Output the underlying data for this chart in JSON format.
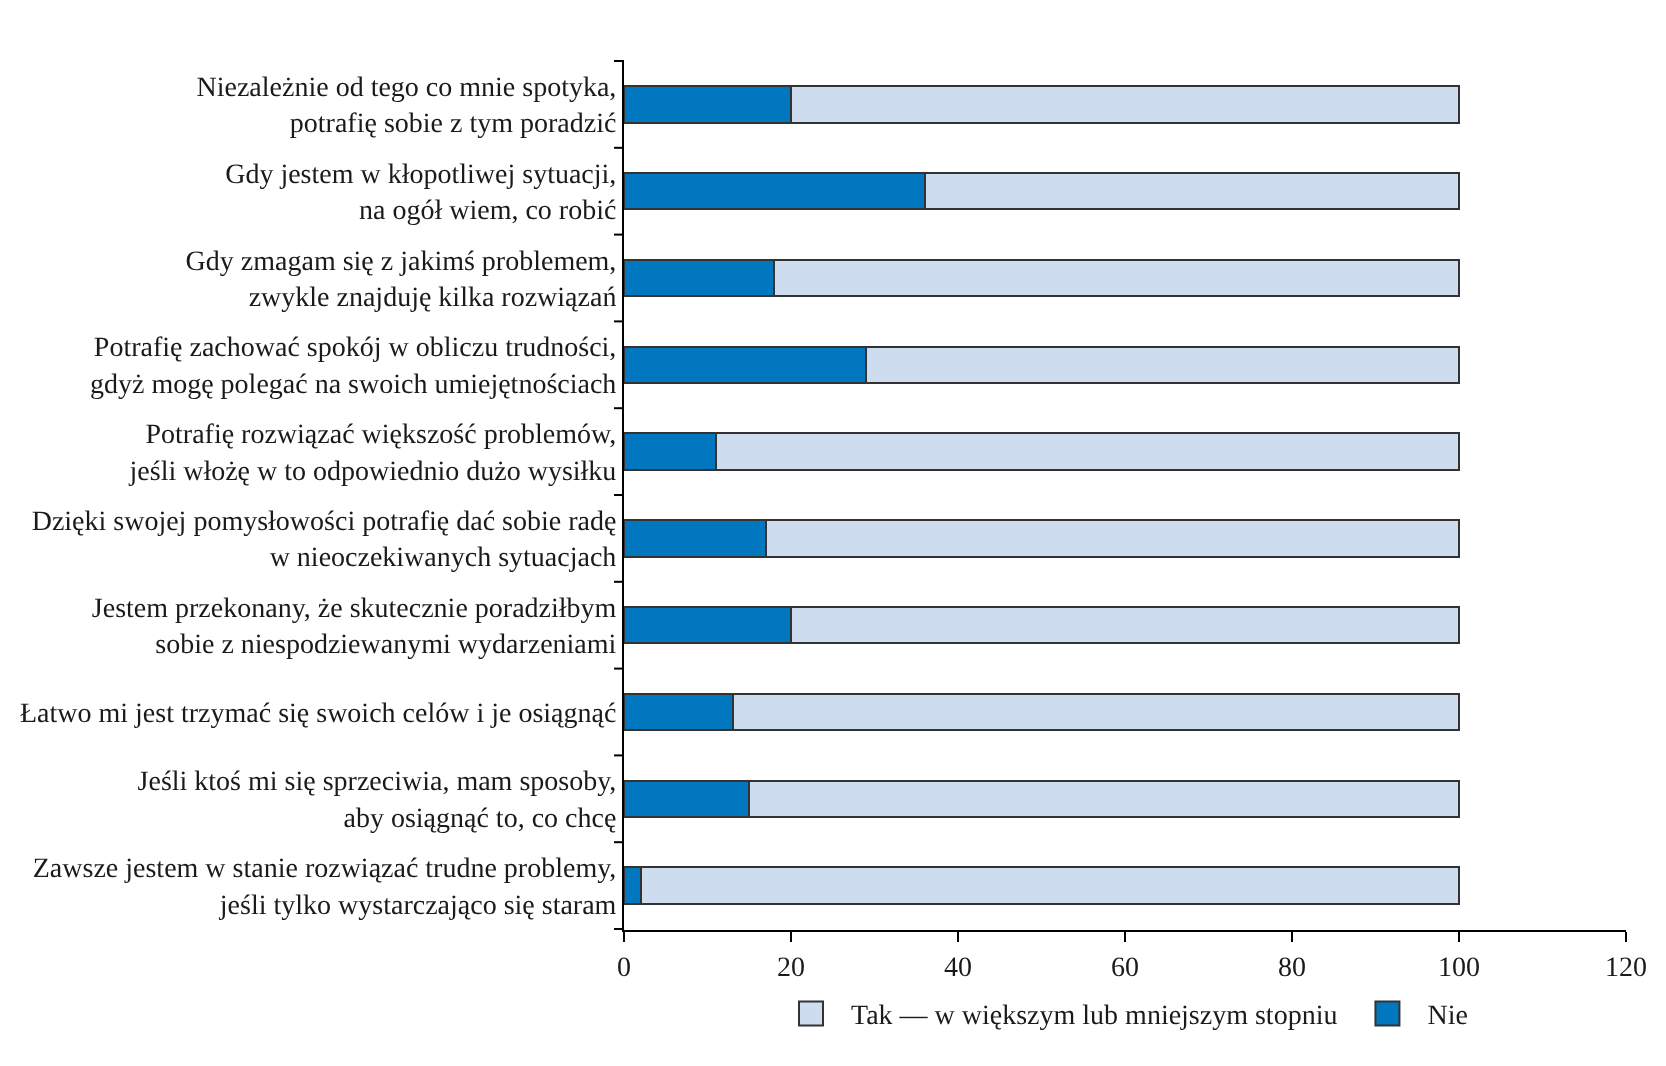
{
  "chart_data": {
    "type": "bar",
    "orientation": "horizontal",
    "stacked": true,
    "categories": [
      "Niezależnie od tego co mnie spotyka,\npotrafię sobie z tym poradzić",
      "Gdy jestem w kłopotliwej sytuacji,\nna ogół wiem, co robić",
      "Gdy zmagam się z jakimś problemem,\nzwykle znajduję kilka rozwiązań",
      "Potrafię zachować spokój w obliczu trudności,\ngdyż mogę polegać na swoich umiejętnościach",
      "Potrafię rozwiązać większość problemów,\njeśli włożę w to odpowiednio dużo wysiłku",
      "Dzięki swojej pomysłowości potrafię dać sobie radę\nw nieoczekiwanych sytuacjach",
      "Jestem przekonany, że skutecznie poradziłbym\nsobie z niespodziewanymi wydarzeniami",
      "Łatwo mi jest trzymać się swoich celów i je osiągnąć",
      "Jeśli ktoś mi się sprzeciwia, mam sposoby,\naby osiągnąć to, co chcę",
      "Zawsze jestem w stanie rozwiązać trudne problemy,\njeśli tylko wystarczająco się staram"
    ],
    "series": [
      {
        "name": "Nie",
        "color": "#0077be",
        "values": [
          20,
          36,
          18,
          29,
          11,
          17,
          20,
          13,
          15,
          2
        ]
      },
      {
        "name": "Tak — w większym lub mniejszym stopniu",
        "color": "#cddcee",
        "values": [
          80,
          64,
          82,
          71,
          89,
          83,
          80,
          87,
          85,
          98
        ]
      }
    ],
    "xlim": [
      0,
      120
    ],
    "xticks": [
      0,
      20,
      40,
      60,
      80,
      100,
      120
    ],
    "grid": false,
    "legend": "bottom"
  }
}
